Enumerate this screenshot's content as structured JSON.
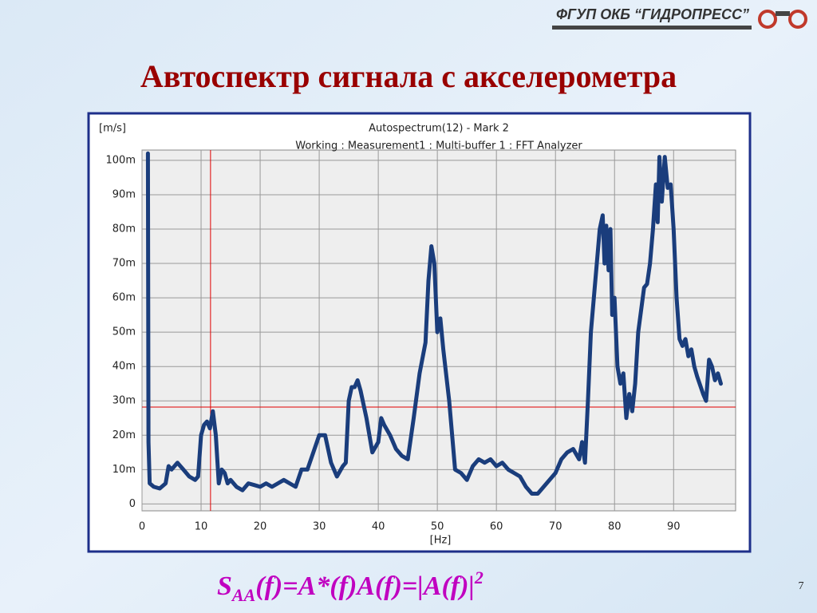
{
  "header": {
    "logo": "ФГУП ОКБ “ГИДРОПРЕСС”"
  },
  "slide_title": "Автоспектр сигнала с акселерометра",
  "chart_data": {
    "type": "line",
    "title": "Autospectrum(12) - Mark 2",
    "subtitle": "Working : Measurement1 : Multi-buffer 1 : FFT Analyzer",
    "y_label": "[m/s]",
    "x_label": "[Hz]",
    "xlim": [
      0,
      100.5
    ],
    "ylim": [
      -0.002,
      0.103
    ],
    "xticks": [
      0,
      10,
      20,
      30,
      40,
      50,
      60,
      70,
      80,
      90
    ],
    "yticks": [
      0,
      {
        "value": 0.01,
        "label": "10m"
      },
      {
        "value": 0.02,
        "label": "20m"
      },
      {
        "value": 0.03,
        "label": "30m"
      },
      {
        "value": 0.04,
        "label": "40m"
      },
      {
        "value": 0.05,
        "label": "50m"
      },
      {
        "value": 0.06,
        "label": "60m"
      },
      {
        "value": 0.07,
        "label": "70m"
      },
      {
        "value": 0.08,
        "label": "80m"
      },
      {
        "value": 0.09,
        "label": "90m"
      },
      {
        "value": 0.1,
        "label": "100m"
      }
    ],
    "grid": true,
    "cursor": {
      "x": 11.6,
      "y": 0.0282,
      "color": "#e00000"
    },
    "x": [
      1.0,
      1.1,
      1.3,
      2,
      3,
      4,
      4.5,
      5,
      6,
      7,
      8,
      9,
      9.5,
      10,
      10.5,
      11,
      11.5,
      12,
      12.5,
      13,
      13.5,
      14,
      14.5,
      15,
      16,
      17,
      18,
      19,
      20,
      21,
      22,
      23,
      24,
      25,
      26,
      27,
      28,
      29,
      30,
      31,
      32,
      33,
      34,
      34.5,
      35,
      35.5,
      36,
      36.5,
      37,
      38,
      39,
      40,
      40.5,
      41,
      42,
      42.5,
      43,
      44,
      45,
      46,
      47,
      48,
      48.5,
      49,
      49.5,
      50,
      50.5,
      51,
      52,
      53,
      54,
      55,
      56,
      57,
      58,
      59,
      60,
      61,
      62,
      63,
      64,
      65,
      66,
      67,
      68,
      69,
      70,
      71,
      72,
      73,
      74,
      74.5,
      75,
      75.5,
      76,
      76.5,
      77,
      77.5,
      78,
      78.3,
      78.6,
      79,
      79.3,
      79.6,
      80,
      80.5,
      81,
      81.5,
      82,
      82.5,
      83,
      83.5,
      84,
      85,
      85.5,
      86,
      86.5,
      87,
      87.3,
      87.6,
      88,
      88.5,
      89,
      89.5,
      90,
      90.5,
      91,
      91.5,
      92,
      92.5,
      93,
      93.5,
      94,
      95,
      95.5,
      96,
      96.5,
      97,
      97.5,
      98
    ],
    "series": [
      {
        "color": "#1a3d7c",
        "values": [
          0.102,
          0.018,
          0.006,
          0.005,
          0.0045,
          0.006,
          0.011,
          0.01,
          0.012,
          0.01,
          0.008,
          0.007,
          0.008,
          0.02,
          0.023,
          0.024,
          0.022,
          0.027,
          0.02,
          0.006,
          0.01,
          0.009,
          0.006,
          0.007,
          0.005,
          0.004,
          0.006,
          0.0055,
          0.005,
          0.006,
          0.005,
          0.006,
          0.007,
          0.006,
          0.005,
          0.01,
          0.01,
          0.015,
          0.02,
          0.02,
          0.012,
          0.008,
          0.011,
          0.012,
          0.03,
          0.034,
          0.034,
          0.036,
          0.033,
          0.025,
          0.015,
          0.018,
          0.025,
          0.023,
          0.02,
          0.018,
          0.016,
          0.014,
          0.013,
          0.025,
          0.038,
          0.047,
          0.065,
          0.075,
          0.07,
          0.05,
          0.054,
          0.045,
          0.03,
          0.01,
          0.009,
          0.007,
          0.011,
          0.013,
          0.012,
          0.013,
          0.011,
          0.012,
          0.01,
          0.009,
          0.008,
          0.005,
          0.003,
          0.003,
          0.005,
          0.007,
          0.009,
          0.013,
          0.015,
          0.016,
          0.013,
          0.018,
          0.012,
          0.03,
          0.05,
          0.06,
          0.07,
          0.08,
          0.084,
          0.07,
          0.081,
          0.068,
          0.08,
          0.055,
          0.06,
          0.04,
          0.035,
          0.038,
          0.025,
          0.032,
          0.027,
          0.035,
          0.05,
          0.063,
          0.064,
          0.07,
          0.08,
          0.093,
          0.082,
          0.101,
          0.088,
          0.101,
          0.092,
          0.093,
          0.08,
          0.06,
          0.048,
          0.046,
          0.048,
          0.043,
          0.045,
          0.04,
          0.037,
          0.032,
          0.03,
          0.042,
          0.04,
          0.036,
          0.038,
          0.035
        ]
      }
    ]
  },
  "formula": {
    "base": "S",
    "subscript": "AA",
    "body": "(f)=A*(f)A(f)=|A(f)|",
    "superscript": "2"
  },
  "page_number": "7"
}
